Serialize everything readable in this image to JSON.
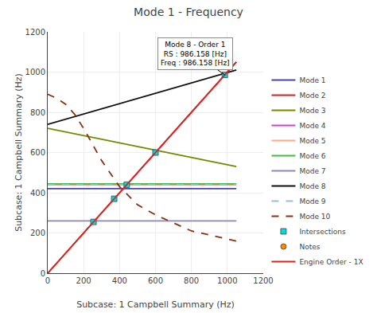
{
  "chart_data": {
    "type": "line",
    "title": "Mode 1 - Frequency",
    "xlabel": "Subcase: 1 Campbell Summary (Hz)",
    "ylabel": "Subcase: 1 Campbell Summary (Hz)",
    "xlim": [
      0,
      1200
    ],
    "ylim": [
      0,
      1200
    ],
    "xticks": [
      0,
      200,
      400,
      600,
      800,
      1000,
      1200
    ],
    "yticks": [
      0,
      200,
      400,
      600,
      800,
      1000,
      1200
    ],
    "grid": true,
    "legend": "lower right",
    "series": [
      {
        "name": "Mode 1",
        "color": "#4444aa",
        "line_style": "solid",
        "x": [
          0,
          1050
        ],
        "values": [
          420,
          420
        ]
      },
      {
        "name": "Mode 2",
        "color": "#cc2222",
        "line_style": "solid",
        "x": [
          0,
          1050
        ],
        "values": [
          0,
          1050
        ]
      },
      {
        "name": "Mode 3",
        "color": "#778800",
        "line_style": "solid",
        "x": [
          0,
          1050
        ],
        "values": [
          720,
          530
        ]
      },
      {
        "name": "Mode 4",
        "color": "#cc44cc",
        "line_style": "solid",
        "x": [
          0,
          1050
        ],
        "values": [
          440,
          440
        ]
      },
      {
        "name": "Mode 5",
        "color": "#ffaa88",
        "line_style": "solid",
        "x": [
          0,
          1050
        ],
        "values": [
          440,
          440
        ]
      },
      {
        "name": "Mode 6",
        "color": "#44bb44",
        "line_style": "solid",
        "x": [
          0,
          1050
        ],
        "values": [
          444,
          444
        ]
      },
      {
        "name": "Mode 7",
        "color": "#8888bb",
        "line_style": "solid",
        "x": [
          0,
          1050
        ],
        "values": [
          260,
          260
        ]
      },
      {
        "name": "Mode 8",
        "color": "#111111",
        "line_style": "solid",
        "x": [
          0,
          1050
        ],
        "values": [
          740,
          1010
        ]
      },
      {
        "name": "Mode 9",
        "color": "#99bbdd",
        "line_style": "dashed",
        "x": [
          0,
          1050
        ],
        "values": [
          440,
          440
        ]
      },
      {
        "name": "Mode 10",
        "color": "#8B3010",
        "line_style": "dashed",
        "x": [
          0,
          50,
          100,
          150,
          200,
          250,
          300,
          400,
          500,
          600,
          700,
          800,
          900,
          1000,
          1050
        ],
        "values": [
          890,
          870,
          840,
          790,
          720,
          640,
          560,
          430,
          340,
          290,
          250,
          210,
          190,
          170,
          160
        ]
      },
      {
        "name": "Intersections",
        "type": "scatter",
        "marker": "square",
        "color": "#00dddd",
        "x": [
          255,
          370,
          440,
          600,
          986
        ],
        "values": [
          255,
          370,
          440,
          600,
          986
        ]
      },
      {
        "name": "Notes",
        "type": "scatter",
        "marker": "circle",
        "color": "#ff8800",
        "x": [],
        "values": []
      },
      {
        "name": "Engine Order - 1X",
        "color": "#dd2222",
        "line_style": "solid",
        "x": [
          0,
          1050
        ],
        "values": [
          0,
          1050
        ]
      }
    ],
    "annotations": [
      {
        "text": "Mode 8 - Order 1\nRS : 986.158 [Hz]\nFreq : 986.158 [Hz]",
        "x": 986,
        "y": 986,
        "text_x": 820,
        "text_y": 1090
      }
    ]
  }
}
